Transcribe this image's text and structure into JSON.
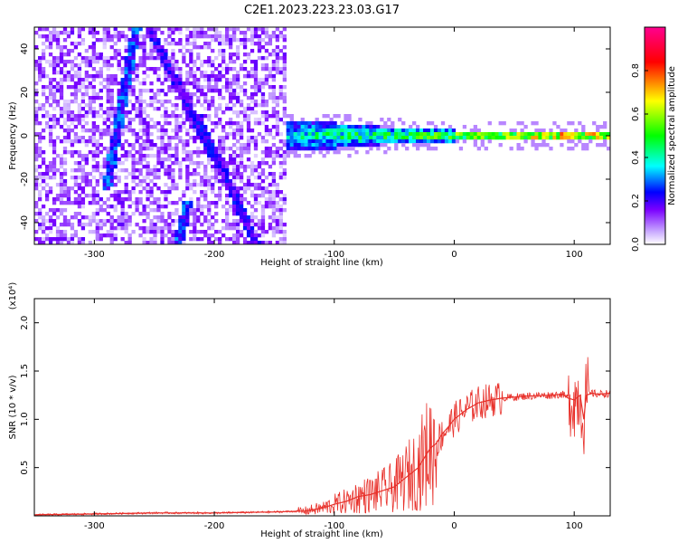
{
  "title": "C2E1.2023.223.23.03.G17",
  "chart_data": [
    {
      "type": "heatmap",
      "xlabel": "Height of straight line (km)",
      "ylabel": "Frequency (Hz)",
      "xlim": [
        -350,
        130
      ],
      "ylim": [
        -50,
        50
      ],
      "xticks": [
        -300,
        -200,
        -100,
        0,
        100
      ],
      "yticks": [
        -40,
        -20,
        0,
        20,
        40
      ],
      "colorbar": {
        "label": "Normalized spectral amplitude",
        "range": [
          0,
          1
        ],
        "ticks": [
          0.0,
          0.2,
          0.4,
          0.6,
          0.8
        ],
        "colors": [
          "#ffffff",
          "#c8a8ff",
          "#7a00ff",
          "#0000ff",
          "#00ffff",
          "#00ff00",
          "#ffff00",
          "#ff0000",
          "#ff0090"
        ]
      },
      "noise_region": {
        "x": [
          -350,
          -140
        ],
        "amplitude": 0.15
      },
      "band": [
        {
          "x": -140,
          "halfwidth_hz": 7,
          "amplitude": 0.45
        },
        {
          "x": -100,
          "halfwidth_hz": 6,
          "amplitude": 0.5
        },
        {
          "x": -60,
          "halfwidth_hz": 4,
          "amplitude": 0.55
        },
        {
          "x": -30,
          "halfwidth_hz": 3,
          "amplitude": 0.6
        },
        {
          "x": 0,
          "halfwidth_hz": 2.5,
          "amplitude": 0.7
        },
        {
          "x": 50,
          "halfwidth_hz": 2.2,
          "amplitude": 0.8
        },
        {
          "x": 100,
          "halfwidth_hz": 2.5,
          "amplitude": 0.9
        },
        {
          "x": 130,
          "halfwidth_hz": 2.5,
          "amplitude": 0.8
        }
      ],
      "streaks": [
        {
          "x": [
            -290,
            -265
          ],
          "y": [
            -25,
            50
          ],
          "amplitude": 0.25
        },
        {
          "x": [
            -255,
            -200
          ],
          "y": [
            50,
            -10
          ],
          "amplitude": 0.2
        },
        {
          "x": [
            -215,
            -165
          ],
          "y": [
            10,
            -50
          ],
          "amplitude": 0.2
        },
        {
          "x": [
            -230,
            -222
          ],
          "y": [
            -50,
            -30
          ],
          "amplitude": 0.25
        }
      ]
    },
    {
      "type": "line",
      "xlabel": "Height of straight line (km)",
      "ylabel": "SNR (10 * v/v)",
      "scale_label": "(x10⁴)",
      "xlim": [
        -350,
        130
      ],
      "ylim": [
        0,
        2.25
      ],
      "xticks": [
        -300,
        -200,
        -100,
        0,
        100
      ],
      "yticks": [
        0.5,
        1.0,
        1.5,
        2.0
      ],
      "color": "#e8302a",
      "x": [
        -350,
        -300,
        -250,
        -200,
        -150,
        -125,
        -110,
        -100,
        -90,
        -80,
        -70,
        -60,
        -50,
        -40,
        -30,
        -25,
        -20,
        -15,
        -10,
        -5,
        0,
        10,
        20,
        30,
        40,
        60,
        80,
        90,
        95,
        100,
        105,
        108,
        110,
        115,
        120,
        130
      ],
      "y": [
        0.01,
        0.02,
        0.03,
        0.03,
        0.04,
        0.05,
        0.08,
        0.12,
        0.15,
        0.2,
        0.22,
        0.26,
        0.3,
        0.4,
        0.5,
        0.6,
        0.7,
        0.75,
        0.85,
        0.92,
        1.0,
        1.1,
        1.17,
        1.2,
        1.22,
        1.24,
        1.25,
        1.26,
        1.22,
        1.2,
        1.25,
        1.0,
        1.25,
        1.27,
        1.26,
        1.27
      ]
    }
  ]
}
